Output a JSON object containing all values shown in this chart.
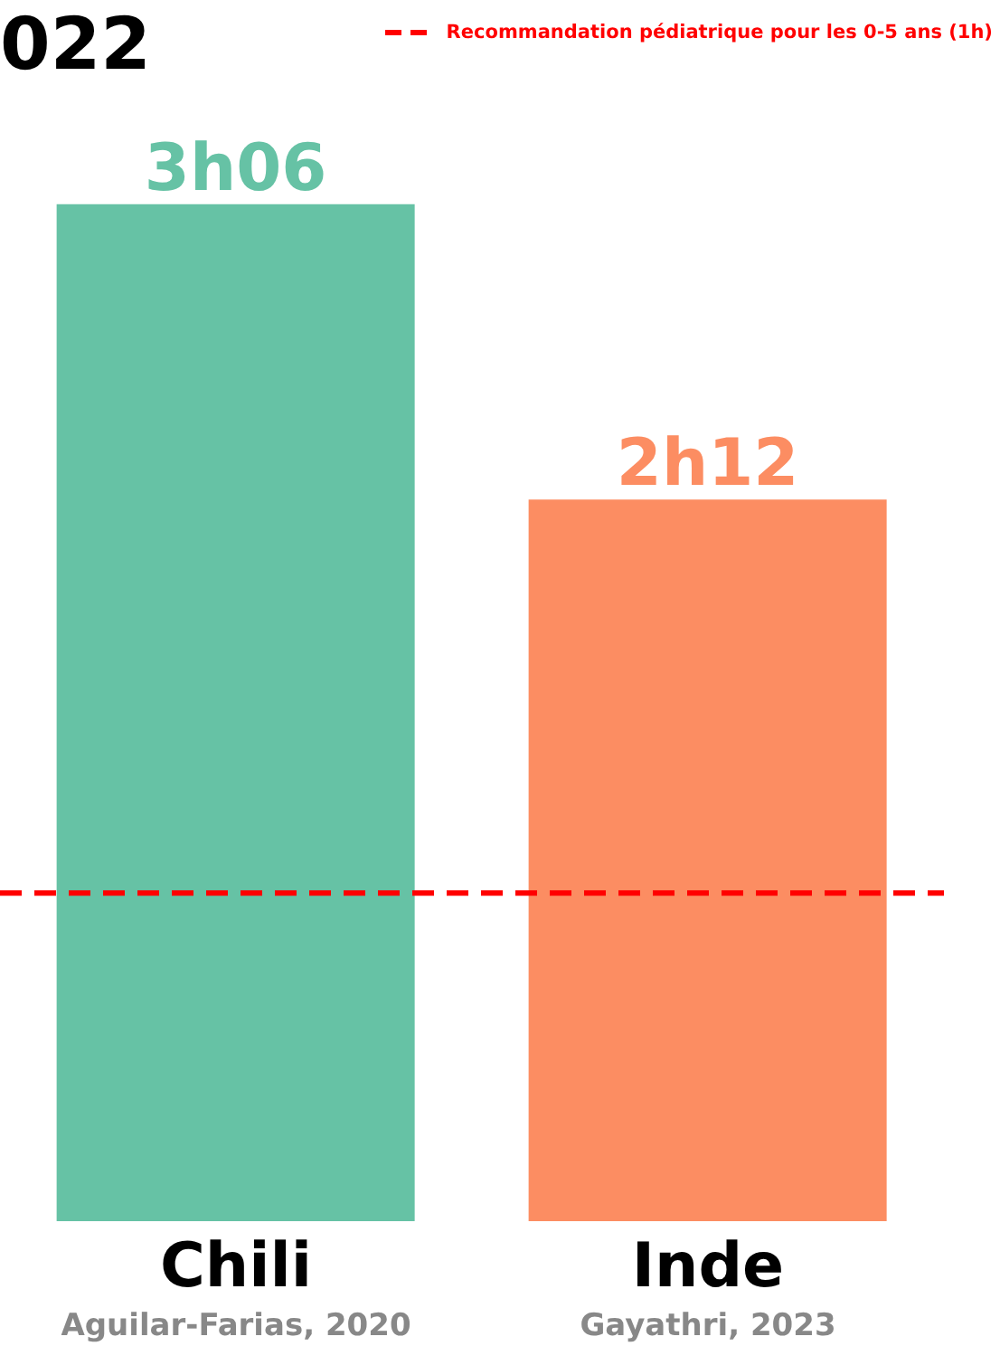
{
  "chart_data": {
    "type": "bar",
    "title": "022",
    "categories": [
      "Chili\nAguilar-Farias, 2020",
      "Inde\nGayathri, 2023"
    ],
    "values": [
      3.1,
      2.2
    ],
    "colors": [
      "#66c2a5",
      "#fc8d62"
    ],
    "value_labels": [
      "3h06",
      "2h12"
    ],
    "ref_lines": [
      {
        "axis": "y",
        "value": 1,
        "label": "Recommandation pédiatrique pour les 0-5 ans (1h)",
        "color": "#ff0000",
        "line_style": "dashed"
      }
    ],
    "legend": "top right"
  }
}
